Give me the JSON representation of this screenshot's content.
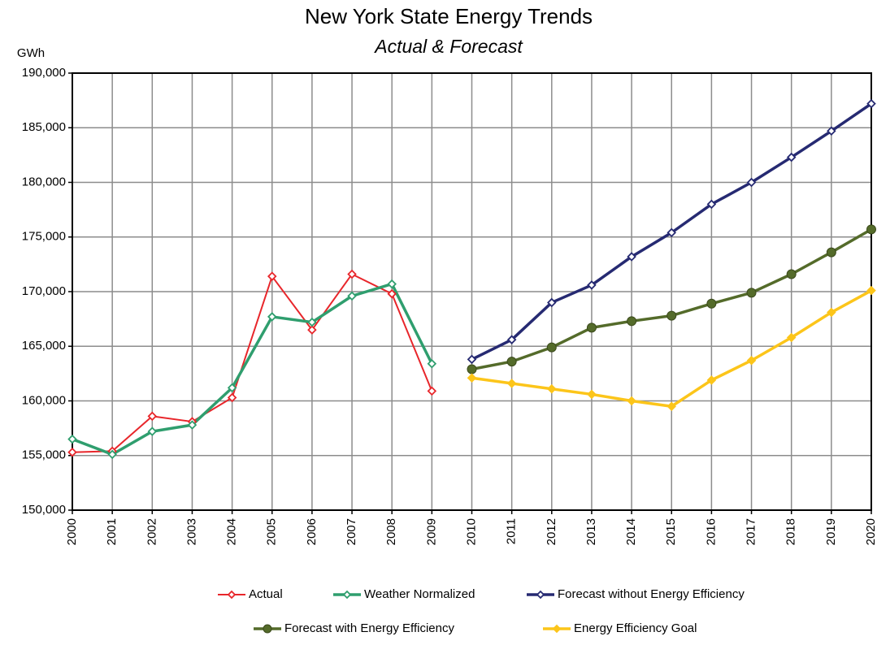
{
  "chart_data": {
    "type": "line",
    "title": "New York State Energy Trends",
    "subtitle": "Actual & Forecast",
    "y_label": "GWh",
    "categories": [
      "2000",
      "2001",
      "2002",
      "2003",
      "2004",
      "2005",
      "2006",
      "2007",
      "2008",
      "2009",
      "2010",
      "2011",
      "2012",
      "2013",
      "2014",
      "2015",
      "2016",
      "2017",
      "2018",
      "2019",
      "2020"
    ],
    "ylim": [
      150000,
      190000
    ],
    "yticks": [
      {
        "value": 150000,
        "label": "150,000"
      },
      {
        "value": 155000,
        "label": "155,000"
      },
      {
        "value": 160000,
        "label": "160,000"
      },
      {
        "value": 165000,
        "label": "165,000"
      },
      {
        "value": 170000,
        "label": "170,000"
      },
      {
        "value": 175000,
        "label": "175,000"
      },
      {
        "value": 180000,
        "label": "180,000"
      },
      {
        "value": 185000,
        "label": "185,000"
      },
      {
        "value": 190000,
        "label": "190,000"
      }
    ],
    "grid": true,
    "legend": "bottom",
    "series": [
      {
        "name": "Actual",
        "color": "#e8262b",
        "marker": "diamond-open",
        "width": 2,
        "values": [
          155300,
          155400,
          158600,
          158100,
          160300,
          171400,
          166500,
          171600,
          169800,
          160900,
          null,
          null,
          null,
          null,
          null,
          null,
          null,
          null,
          null,
          null,
          null
        ]
      },
      {
        "name": "Weather Normalized",
        "color": "#2f9e6e",
        "marker": "diamond-open",
        "width": 3.5,
        "values": [
          156500,
          155100,
          157200,
          157800,
          161200,
          167700,
          167200,
          169600,
          170700,
          163400,
          null,
          null,
          null,
          null,
          null,
          null,
          null,
          null,
          null,
          null,
          null
        ]
      },
      {
        "name": "Forecast without Energy Efficiency",
        "color": "#262a72",
        "marker": "diamond-open",
        "width": 3.5,
        "values": [
          null,
          null,
          null,
          null,
          null,
          null,
          null,
          null,
          null,
          null,
          163800,
          165600,
          169000,
          170600,
          173200,
          175400,
          178000,
          180000,
          182300,
          184700,
          187200
        ]
      },
      {
        "name": "Forecast with Energy Efficiency",
        "color": "#546b2a",
        "marker": "circle",
        "width": 3.5,
        "values": [
          null,
          null,
          null,
          null,
          null,
          null,
          null,
          null,
          null,
          null,
          162900,
          163600,
          164900,
          166700,
          167300,
          167800,
          168900,
          169900,
          171600,
          173600,
          175700
        ]
      },
      {
        "name": "Energy Efficiency Goal",
        "color": "#fcc51a",
        "marker": "diamond",
        "width": 3.5,
        "values": [
          null,
          null,
          null,
          null,
          null,
          null,
          null,
          null,
          null,
          null,
          162100,
          161600,
          161100,
          160600,
          160000,
          159500,
          161900,
          163700,
          165800,
          168100,
          170100
        ]
      }
    ]
  }
}
